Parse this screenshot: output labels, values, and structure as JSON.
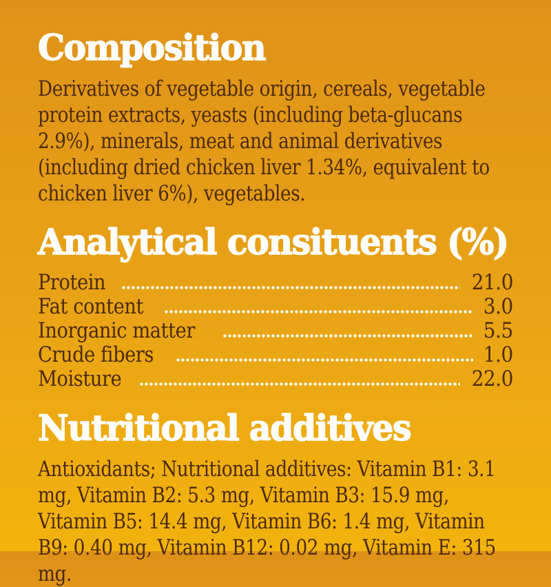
{
  "colors": {
    "background_top": "#DF9218",
    "background_bottom": "#F2B30D",
    "heading_text": "#FFFFFF",
    "body_text": "#4C2B0D",
    "dot_leader": "#FFFDF2"
  },
  "composition": {
    "title": "Composition",
    "body": "Derivatives of vegetable origin, cereals, vegetable protein extracts, yeasts (including beta-glucans 2.9%), minerals, meat and animal derivatives (including dried chicken liver 1.34%, equivalent to chicken liver 6%), vegetables."
  },
  "analytical": {
    "title": "Analytical consituents (%)",
    "rows": [
      {
        "label": "Protein",
        "value": "21.0"
      },
      {
        "label": "Fat content",
        "value": "3.0"
      },
      {
        "label": "Inorganic matter",
        "value": "5.5"
      },
      {
        "label": "Crude fibers",
        "value": "1.0"
      },
      {
        "label": "Moisture",
        "value": "22.0"
      }
    ]
  },
  "nutritional": {
    "title": "Nutritional additives",
    "body": "Antioxidants; Nutritional additives: Vitamin B1: 3.1 mg, Vitamin B2: 5.3 mg, Vitamin B3: 15.9 mg, Vitamin B5: 14.4 mg, Vitamin B6: 1.4 mg, Vitamin B9: 0.40 mg, Vitamin B12: 0.02 mg, Vitamin E: 315 mg."
  }
}
